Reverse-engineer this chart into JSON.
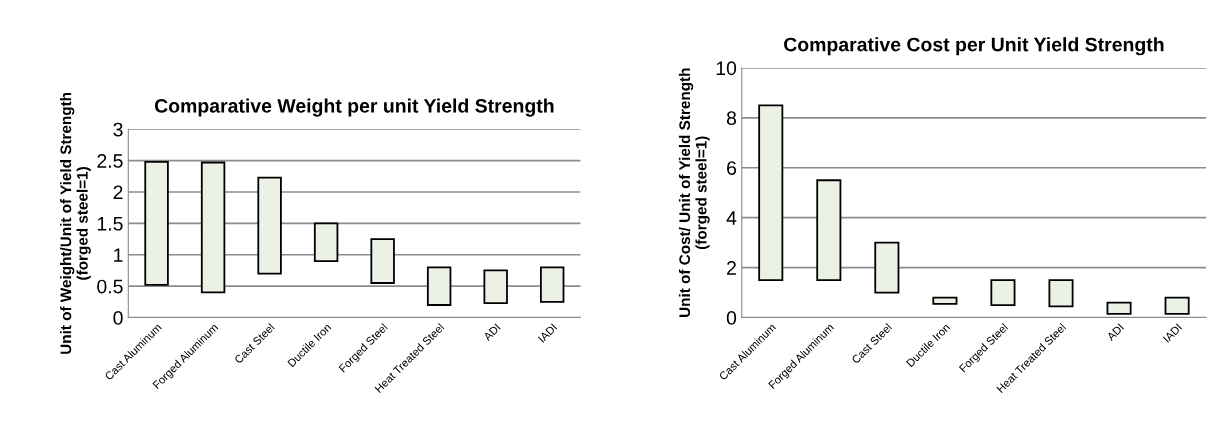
{
  "chart_data": [
    {
      "type": "bar",
      "title": "Comparative Weight per unit Yield Strength",
      "ylabel": "Unit of Weight/Unit of Yield Strength\n(forged steel=1)",
      "categories": [
        "Cast Aluminum",
        "Forged Aluminum",
        "Cast Steel",
        "Ductile Iron",
        "Forged Steel",
        "Heat Treated Steel",
        "ADI",
        "IADI"
      ],
      "base": [
        0.52,
        0.4,
        0.7,
        0.9,
        0.55,
        0.2,
        0.23,
        0.25
      ],
      "values": [
        1.96,
        2.07,
        1.53,
        0.6,
        0.7,
        0.6,
        0.52,
        0.55
      ],
      "color": "#ebf1e4",
      "ylim": [
        0,
        3
      ],
      "yticks": [
        0,
        {
          "value": 0.5,
          "label": "0.5"
        },
        1,
        {
          "value": 1.5,
          "label": "1.5"
        },
        2,
        {
          "value": 2.5,
          "label": "2.5"
        },
        3
      ],
      "grid": "y",
      "legend": false
    },
    {
      "type": "bar",
      "title": "Comparative Cost per Unit Yield Strength",
      "ylabel": "Unit of Cost/ Unit of Yield Strength\n(forged steel=1)",
      "categories": [
        "Cast Aluminum",
        "Forged Aluminum",
        "Cast Steel",
        "Ductile Iron",
        "Forged Steel",
        "Heat Treated Steel",
        "ADI",
        "IADI"
      ],
      "base": [
        1.5,
        1.5,
        1.0,
        0.55,
        0.5,
        0.45,
        0.15,
        0.15
      ],
      "values": [
        7,
        4,
        2,
        0.25,
        1,
        1.05,
        0.45,
        0.65
      ],
      "color": "#ebf1e4",
      "ylim": [
        0,
        10
      ],
      "yticks": [
        0,
        2,
        4,
        6,
        8,
        10
      ],
      "grid": "y",
      "legend": false
    }
  ]
}
